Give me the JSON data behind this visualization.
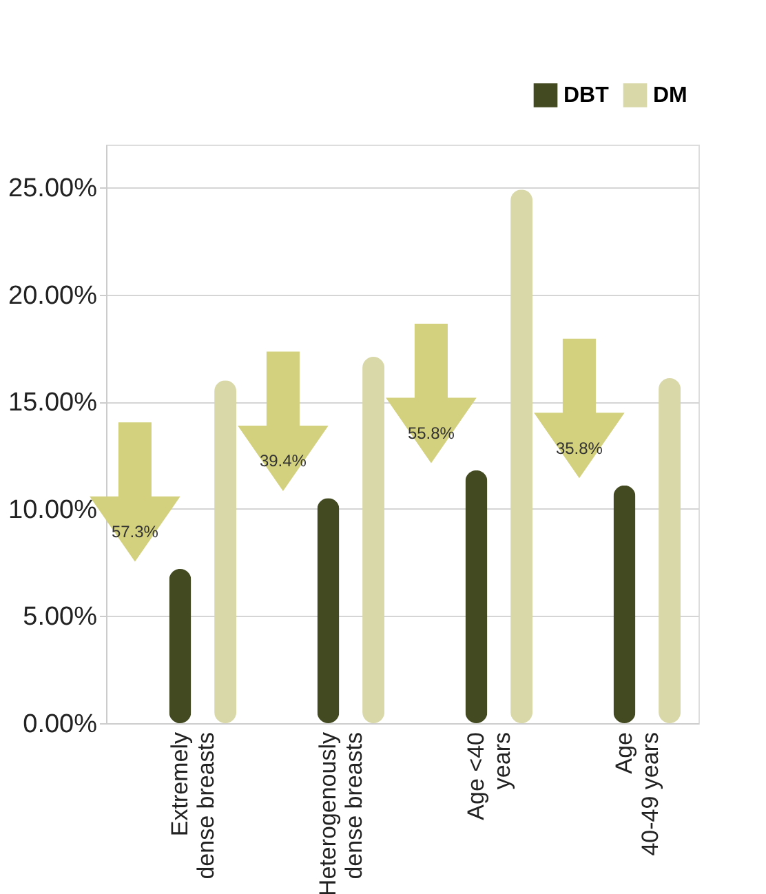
{
  "chart_data": {
    "type": "bar",
    "categories": [
      "Extremely\ndense breasts",
      "Heterogenously\ndense breasts",
      "Age <40\nyears",
      "Age\n40-49 years"
    ],
    "series": [
      {
        "name": "DBT",
        "color": "#434a21",
        "values": [
          7.2,
          10.5,
          11.8,
          11.1
        ]
      },
      {
        "name": "DM",
        "color": "#d9d8a8",
        "values": [
          16.0,
          17.1,
          24.9,
          16.1
        ]
      }
    ],
    "ylim": [
      0,
      27
    ],
    "yticks": [
      {
        "value": 0,
        "label": "0.00%"
      },
      {
        "value": 5,
        "label": "5.00%"
      },
      {
        "value": 10,
        "label": "10.00%"
      },
      {
        "value": 15,
        "label": "15.00%"
      },
      {
        "value": 20,
        "label": "20.00%"
      },
      {
        "value": 25,
        "label": "25.00%"
      }
    ],
    "annotations": [
      "57.3%",
      "39.4%",
      "55.8%",
      "35.8%"
    ],
    "grid": "y",
    "legend": "top right"
  }
}
